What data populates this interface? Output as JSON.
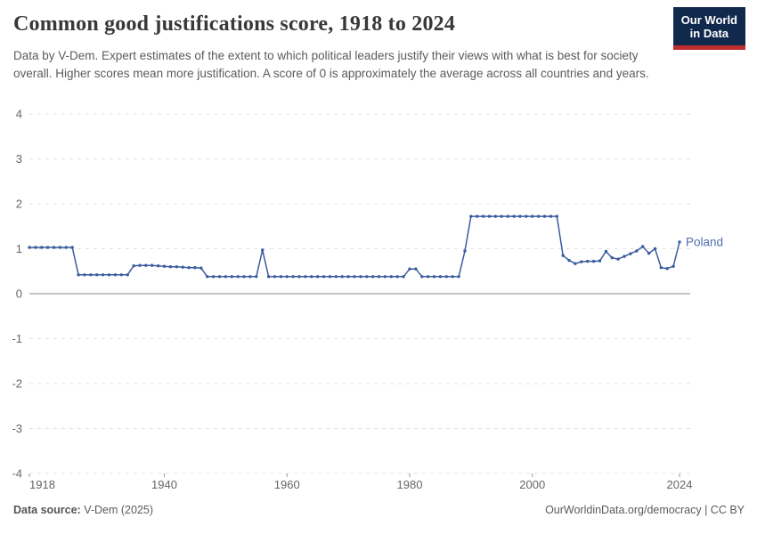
{
  "header": {
    "title": "Common good justifications score, 1918 to 2024",
    "subtitle": "Data by V-Dem. Expert estimates of the extent to which political leaders justify their views with what is best for society overall. Higher scores mean more justification. A score of 0 is approximately the average across all countries and years.",
    "logo": {
      "line1": "Our World",
      "line2": "in Data",
      "bg": "#10294d",
      "accent": "#bf2e2e"
    }
  },
  "chart_data": {
    "type": "line",
    "title": "Common good justifications score, 1918 to 2024",
    "xlabel": "",
    "ylabel": "",
    "xlim": [
      1918,
      2024
    ],
    "ylim": [
      -4,
      4
    ],
    "xticks": [
      1918,
      1940,
      1960,
      1980,
      2000,
      2024
    ],
    "yticks": [
      4,
      3,
      2,
      1,
      0,
      -1,
      -2,
      -3,
      -4
    ],
    "grid": "horizontal dashed, solid zero line",
    "legend_position": "end-of-line label",
    "end_label": "Poland",
    "colors": {
      "grid": "#e0e0e0",
      "zero_line": "#a3a3a3",
      "tick": "#666666",
      "entity_label": "#4d6eae"
    },
    "series": [
      {
        "name": "Poland",
        "color": "#3a5c9e",
        "x": [
          1918,
          1919,
          1920,
          1921,
          1922,
          1923,
          1924,
          1925,
          1926,
          1927,
          1928,
          1929,
          1930,
          1931,
          1932,
          1933,
          1934,
          1935,
          1936,
          1937,
          1938,
          1939,
          1940,
          1941,
          1942,
          1943,
          1944,
          1945,
          1946,
          1947,
          1948,
          1949,
          1950,
          1951,
          1952,
          1953,
          1954,
          1955,
          1956,
          1957,
          1958,
          1959,
          1960,
          1961,
          1962,
          1963,
          1964,
          1965,
          1966,
          1967,
          1968,
          1969,
          1970,
          1971,
          1972,
          1973,
          1974,
          1975,
          1976,
          1977,
          1978,
          1979,
          1980,
          1981,
          1982,
          1983,
          1984,
          1985,
          1986,
          1987,
          1988,
          1989,
          1990,
          1991,
          1992,
          1993,
          1994,
          1995,
          1996,
          1997,
          1998,
          1999,
          2000,
          2001,
          2002,
          2003,
          2004,
          2005,
          2006,
          2007,
          2008,
          2009,
          2010,
          2011,
          2012,
          2013,
          2014,
          2015,
          2016,
          2017,
          2018,
          2019,
          2020,
          2021,
          2022,
          2023,
          2024
        ],
        "values": [
          1.03,
          1.03,
          1.03,
          1.03,
          1.03,
          1.03,
          1.03,
          1.03,
          0.42,
          0.42,
          0.42,
          0.42,
          0.42,
          0.42,
          0.42,
          0.42,
          0.42,
          0.62,
          0.63,
          0.63,
          0.63,
          0.62,
          0.61,
          0.6,
          0.6,
          0.59,
          0.58,
          0.58,
          0.57,
          0.38,
          0.38,
          0.38,
          0.38,
          0.38,
          0.38,
          0.38,
          0.38,
          0.38,
          0.97,
          0.38,
          0.38,
          0.38,
          0.38,
          0.38,
          0.38,
          0.38,
          0.38,
          0.38,
          0.38,
          0.38,
          0.38,
          0.38,
          0.38,
          0.38,
          0.38,
          0.38,
          0.38,
          0.38,
          0.38,
          0.38,
          0.38,
          0.38,
          0.55,
          0.55,
          0.38,
          0.38,
          0.38,
          0.38,
          0.38,
          0.38,
          0.38,
          0.95,
          1.72,
          1.72,
          1.72,
          1.72,
          1.72,
          1.72,
          1.72,
          1.72,
          1.72,
          1.72,
          1.72,
          1.72,
          1.72,
          1.72,
          1.72,
          0.85,
          0.74,
          0.67,
          0.71,
          0.72,
          0.72,
          0.73,
          0.94,
          0.8,
          0.77,
          0.83,
          0.89,
          0.95,
          1.05,
          0.9,
          1.0,
          0.58,
          0.56,
          0.61,
          1.15
        ]
      }
    ]
  },
  "footer": {
    "source_label": "Data source:",
    "source_value": "V-Dem (2025)",
    "link": "OurWorldinData.org/democracy",
    "separator": " | ",
    "license": "CC BY"
  }
}
